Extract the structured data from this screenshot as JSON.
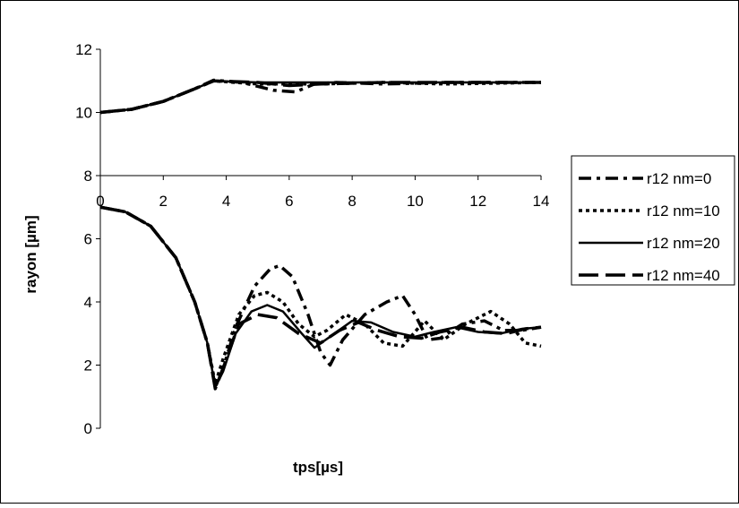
{
  "chart_data": {
    "type": "line",
    "title": "",
    "xlabel": "tps[µs]",
    "ylabel": "rayon [µm]",
    "xlim": [
      0,
      14
    ],
    "ylim": [
      0,
      12
    ],
    "x_ticks": [
      "0",
      "2",
      "4",
      "6",
      "8",
      "10",
      "12",
      "14"
    ],
    "y_ticks": [
      "0",
      "2",
      "4",
      "6",
      "8",
      "10",
      "12"
    ],
    "grid": false,
    "legend_position": "right",
    "series": [
      {
        "name": "r12 nm=0",
        "style": "dash-dot",
        "upper": [
          [
            0,
            10
          ],
          [
            1,
            10.1
          ],
          [
            2,
            10.35
          ],
          [
            3,
            10.75
          ],
          [
            3.6,
            11.02
          ],
          [
            4.5,
            10.95
          ],
          [
            5.5,
            10.7
          ],
          [
            6.2,
            10.65
          ],
          [
            6.8,
            10.9
          ],
          [
            7.5,
            10.95
          ],
          [
            9,
            10.9
          ],
          [
            11,
            10.95
          ],
          [
            14,
            10.95
          ]
        ],
        "lower": [
          [
            0,
            7
          ],
          [
            0.8,
            6.85
          ],
          [
            1.6,
            6.4
          ],
          [
            2.4,
            5.4
          ],
          [
            3.0,
            4.0
          ],
          [
            3.4,
            2.7
          ],
          [
            3.65,
            1.3
          ],
          [
            3.9,
            1.9
          ],
          [
            4.3,
            3.2
          ],
          [
            4.9,
            4.5
          ],
          [
            5.4,
            5.05
          ],
          [
            5.7,
            5.15
          ],
          [
            6.1,
            4.8
          ],
          [
            6.6,
            3.6
          ],
          [
            7.0,
            2.4
          ],
          [
            7.3,
            2.0
          ],
          [
            7.7,
            2.8
          ],
          [
            8.4,
            3.6
          ],
          [
            9.1,
            4.0
          ],
          [
            9.6,
            4.2
          ],
          [
            10.0,
            3.6
          ],
          [
            10.4,
            2.8
          ],
          [
            10.8,
            2.85
          ],
          [
            11.5,
            3.3
          ],
          [
            12.2,
            3.4
          ],
          [
            12.8,
            3.1
          ],
          [
            13.4,
            3.1
          ],
          [
            14,
            3.2
          ]
        ]
      },
      {
        "name": "r12 nm=10",
        "style": "dotted",
        "upper": [
          [
            0,
            10
          ],
          [
            1,
            10.1
          ],
          [
            2,
            10.35
          ],
          [
            3,
            10.75
          ],
          [
            3.6,
            11.0
          ],
          [
            5,
            10.9
          ],
          [
            7,
            10.9
          ],
          [
            9,
            10.95
          ],
          [
            11,
            10.9
          ],
          [
            14,
            10.95
          ]
        ],
        "lower": [
          [
            0,
            7
          ],
          [
            0.8,
            6.85
          ],
          [
            1.6,
            6.4
          ],
          [
            2.4,
            5.4
          ],
          [
            3.0,
            4.0
          ],
          [
            3.4,
            2.7
          ],
          [
            3.65,
            1.4
          ],
          [
            3.9,
            2.2
          ],
          [
            4.4,
            3.6
          ],
          [
            4.9,
            4.2
          ],
          [
            5.3,
            4.3
          ],
          [
            5.8,
            4.0
          ],
          [
            6.3,
            3.3
          ],
          [
            6.8,
            2.9
          ],
          [
            7.2,
            3.1
          ],
          [
            7.8,
            3.6
          ],
          [
            8.4,
            3.3
          ],
          [
            9.0,
            2.7
          ],
          [
            9.6,
            2.6
          ],
          [
            10.3,
            3.4
          ],
          [
            10.9,
            2.8
          ],
          [
            11.6,
            3.3
          ],
          [
            12.4,
            3.7
          ],
          [
            13.0,
            3.3
          ],
          [
            13.5,
            2.7
          ],
          [
            14,
            2.6
          ]
        ]
      },
      {
        "name": "r12 nm=20",
        "style": "solid",
        "upper": [
          [
            0,
            10
          ],
          [
            1,
            10.1
          ],
          [
            2,
            10.35
          ],
          [
            3,
            10.75
          ],
          [
            3.6,
            11.0
          ],
          [
            5,
            10.95
          ],
          [
            7,
            10.95
          ],
          [
            10,
            10.95
          ],
          [
            14,
            10.95
          ]
        ],
        "lower": [
          [
            0,
            7
          ],
          [
            0.8,
            6.85
          ],
          [
            1.6,
            6.4
          ],
          [
            2.4,
            5.4
          ],
          [
            3.0,
            4.0
          ],
          [
            3.4,
            2.7
          ],
          [
            3.65,
            1.3
          ],
          [
            3.9,
            1.8
          ],
          [
            4.3,
            3.0
          ],
          [
            4.8,
            3.7
          ],
          [
            5.3,
            3.9
          ],
          [
            5.8,
            3.7
          ],
          [
            6.4,
            3.0
          ],
          [
            6.8,
            2.55
          ],
          [
            7.3,
            2.9
          ],
          [
            8.0,
            3.4
          ],
          [
            8.6,
            3.35
          ],
          [
            9.3,
            3.05
          ],
          [
            10.0,
            2.9
          ],
          [
            10.6,
            3.05
          ],
          [
            11.3,
            3.2
          ],
          [
            12.0,
            3.05
          ],
          [
            12.7,
            3.0
          ],
          [
            13.4,
            3.15
          ],
          [
            14,
            3.2
          ]
        ]
      },
      {
        "name": "r12 nm=40",
        "style": "long-dash",
        "upper": [
          [
            0,
            10
          ],
          [
            1,
            10.1
          ],
          [
            2,
            10.35
          ],
          [
            3,
            10.75
          ],
          [
            3.6,
            11.0
          ],
          [
            5,
            10.95
          ],
          [
            6,
            10.85
          ],
          [
            7,
            10.9
          ],
          [
            9,
            10.95
          ],
          [
            14,
            10.95
          ]
        ],
        "lower": [
          [
            0,
            7
          ],
          [
            0.8,
            6.85
          ],
          [
            1.6,
            6.4
          ],
          [
            2.4,
            5.4
          ],
          [
            3.0,
            4.0
          ],
          [
            3.4,
            2.7
          ],
          [
            3.65,
            1.25
          ],
          [
            3.9,
            1.9
          ],
          [
            4.4,
            3.3
          ],
          [
            5.0,
            3.6
          ],
          [
            5.6,
            3.5
          ],
          [
            6.3,
            3.0
          ],
          [
            7.0,
            2.7
          ],
          [
            7.6,
            3.1
          ],
          [
            8.2,
            3.35
          ],
          [
            8.8,
            3.1
          ],
          [
            9.5,
            2.9
          ],
          [
            10.2,
            2.85
          ],
          [
            10.8,
            3.05
          ],
          [
            11.5,
            3.2
          ],
          [
            12.2,
            3.05
          ],
          [
            12.9,
            3.0
          ],
          [
            13.5,
            3.15
          ],
          [
            14,
            3.2
          ]
        ]
      }
    ]
  }
}
